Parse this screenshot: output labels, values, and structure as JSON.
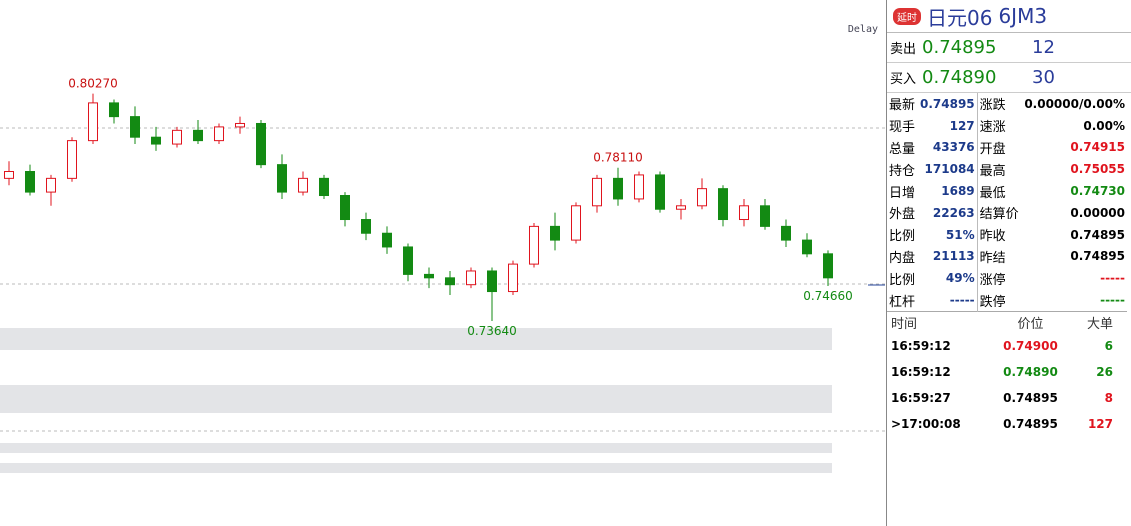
{
  "chart_data": {
    "type": "candlestick",
    "ylim": [
      0.73,
      0.83
    ],
    "up_color": "#e0141e",
    "down_color": "#138a13",
    "candles": [
      {
        "o": 0.778,
        "h": 0.783,
        "l": 0.776,
        "c": 0.78
      },
      {
        "o": 0.78,
        "h": 0.782,
        "l": 0.773,
        "c": 0.774
      },
      {
        "o": 0.774,
        "h": 0.779,
        "l": 0.77,
        "c": 0.778
      },
      {
        "o": 0.778,
        "h": 0.79,
        "l": 0.777,
        "c": 0.789
      },
      {
        "o": 0.789,
        "h": 0.8027,
        "l": 0.788,
        "c": 0.8
      },
      {
        "o": 0.8,
        "h": 0.801,
        "l": 0.794,
        "c": 0.796
      },
      {
        "o": 0.796,
        "h": 0.799,
        "l": 0.788,
        "c": 0.79
      },
      {
        "o": 0.79,
        "h": 0.793,
        "l": 0.786,
        "c": 0.788
      },
      {
        "o": 0.788,
        "h": 0.793,
        "l": 0.787,
        "c": 0.792
      },
      {
        "o": 0.792,
        "h": 0.795,
        "l": 0.788,
        "c": 0.789
      },
      {
        "o": 0.789,
        "h": 0.794,
        "l": 0.788,
        "c": 0.793
      },
      {
        "o": 0.793,
        "h": 0.796,
        "l": 0.791,
        "c": 0.794
      },
      {
        "o": 0.794,
        "h": 0.795,
        "l": 0.781,
        "c": 0.782
      },
      {
        "o": 0.782,
        "h": 0.785,
        "l": 0.772,
        "c": 0.774
      },
      {
        "o": 0.774,
        "h": 0.78,
        "l": 0.773,
        "c": 0.778
      },
      {
        "o": 0.778,
        "h": 0.779,
        "l": 0.772,
        "c": 0.773
      },
      {
        "o": 0.773,
        "h": 0.774,
        "l": 0.764,
        "c": 0.766
      },
      {
        "o": 0.766,
        "h": 0.768,
        "l": 0.76,
        "c": 0.762
      },
      {
        "o": 0.762,
        "h": 0.764,
        "l": 0.756,
        "c": 0.758
      },
      {
        "o": 0.758,
        "h": 0.759,
        "l": 0.748,
        "c": 0.75
      },
      {
        "o": 0.75,
        "h": 0.752,
        "l": 0.746,
        "c": 0.749
      },
      {
        "o": 0.749,
        "h": 0.751,
        "l": 0.744,
        "c": 0.747
      },
      {
        "o": 0.747,
        "h": 0.752,
        "l": 0.746,
        "c": 0.751
      },
      {
        "o": 0.751,
        "h": 0.752,
        "l": 0.7364,
        "c": 0.745
      },
      {
        "o": 0.745,
        "h": 0.754,
        "l": 0.744,
        "c": 0.753
      },
      {
        "o": 0.753,
        "h": 0.765,
        "l": 0.752,
        "c": 0.764
      },
      {
        "o": 0.764,
        "h": 0.768,
        "l": 0.757,
        "c": 0.76
      },
      {
        "o": 0.76,
        "h": 0.771,
        "l": 0.759,
        "c": 0.77
      },
      {
        "o": 0.77,
        "h": 0.779,
        "l": 0.768,
        "c": 0.778
      },
      {
        "o": 0.778,
        "h": 0.7811,
        "l": 0.77,
        "c": 0.772
      },
      {
        "o": 0.772,
        "h": 0.78,
        "l": 0.771,
        "c": 0.779
      },
      {
        "o": 0.779,
        "h": 0.78,
        "l": 0.768,
        "c": 0.769
      },
      {
        "o": 0.769,
        "h": 0.772,
        "l": 0.766,
        "c": 0.77
      },
      {
        "o": 0.77,
        "h": 0.778,
        "l": 0.769,
        "c": 0.775
      },
      {
        "o": 0.775,
        "h": 0.776,
        "l": 0.764,
        "c": 0.766
      },
      {
        "o": 0.766,
        "h": 0.772,
        "l": 0.764,
        "c": 0.77
      },
      {
        "o": 0.77,
        "h": 0.772,
        "l": 0.763,
        "c": 0.764
      },
      {
        "o": 0.764,
        "h": 0.766,
        "l": 0.758,
        "c": 0.76
      },
      {
        "o": 0.76,
        "h": 0.762,
        "l": 0.755,
        "c": 0.756
      },
      {
        "o": 0.756,
        "h": 0.757,
        "l": 0.7466,
        "c": 0.749
      }
    ],
    "annotations": [
      {
        "value": 0.8027,
        "label": "0.80270",
        "kind": "high"
      },
      {
        "value": 0.7811,
        "label": "0.78110",
        "kind": "high"
      },
      {
        "value": 0.7364,
        "label": "0.73640",
        "kind": "low"
      },
      {
        "value": 0.7466,
        "label": "0.74660",
        "kind": "low"
      }
    ],
    "delay": "Delay"
  },
  "panel": {
    "badge": "延时",
    "title": "日元06",
    "code": "6JM3",
    "sell": {
      "label": "卖出",
      "price": "0.74895",
      "qty": "12"
    },
    "buy": {
      "label": "买入",
      "price": "0.74890",
      "qty": "30"
    },
    "stats": [
      [
        "最新",
        "0.74895",
        "涨跌",
        "0.00000/0.00%"
      ],
      [
        "现手",
        "127",
        "速涨",
        "0.00%"
      ],
      [
        "总量",
        "43376",
        "开盘",
        "0.74915"
      ],
      [
        "持仓",
        "171084",
        "最高",
        "0.75055"
      ],
      [
        "日增",
        "1689",
        "最低",
        "0.74730"
      ],
      [
        "外盘",
        "22263",
        "结算价",
        "0.00000"
      ],
      [
        "比例",
        "51%",
        "昨收",
        "0.74895"
      ],
      [
        "内盘",
        "21113",
        "昨结",
        "0.74895"
      ],
      [
        "比例",
        "49%",
        "涨停",
        "-----"
      ],
      [
        "杠杆",
        "-----",
        "跌停",
        "-----"
      ]
    ],
    "trades_header": [
      "时间",
      "价位",
      "大单"
    ],
    "trades": [
      [
        "16:59:12",
        "0.74900",
        "6"
      ],
      [
        "16:59:12",
        "0.74890",
        "26"
      ],
      [
        "16:59:27",
        "0.74895",
        "8"
      ],
      [
        ">17:00:08",
        "0.74895",
        "127"
      ]
    ]
  }
}
